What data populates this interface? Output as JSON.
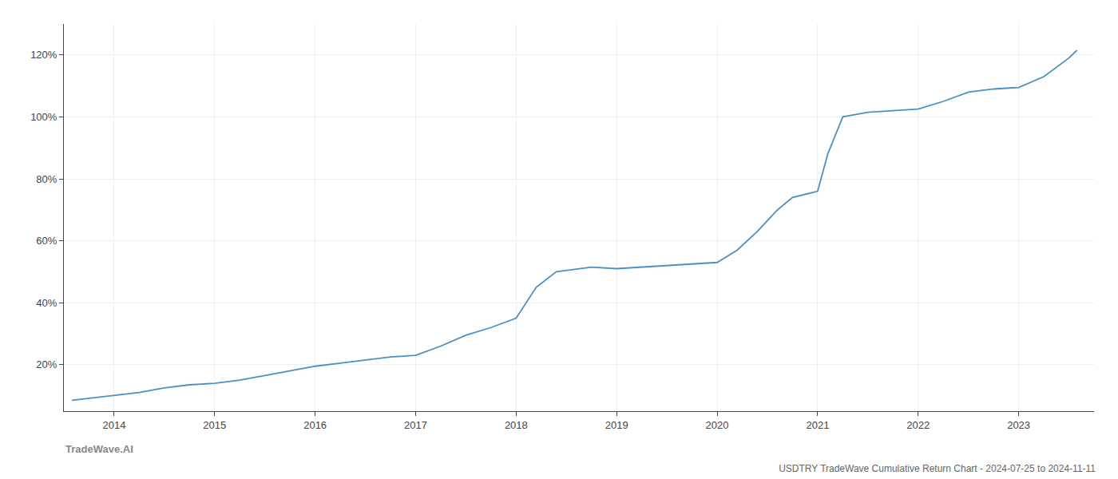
{
  "chart_data": {
    "type": "line",
    "title": "USDTRY TradeWave Cumulative Return Chart - 2024-07-25 to 2024-11-11",
    "annotations": [
      "TradeWave.AI"
    ],
    "color": "#4a90c4",
    "x": [
      2013.58,
      2014.0,
      2014.25,
      2014.5,
      2014.75,
      2015.0,
      2015.25,
      2015.5,
      2015.75,
      2016.0,
      2016.25,
      2016.5,
      2016.75,
      2017.0,
      2017.25,
      2017.5,
      2017.75,
      2018.0,
      2018.1,
      2018.2,
      2018.4,
      2018.75,
      2019.0,
      2019.25,
      2019.5,
      2019.75,
      2020.0,
      2020.2,
      2020.4,
      2020.6,
      2020.75,
      2021.0,
      2021.1,
      2021.25,
      2021.5,
      2021.75,
      2022.0,
      2022.25,
      2022.5,
      2022.75,
      2023.0,
      2023.25,
      2023.5,
      2023.58
    ],
    "values": [
      8.5,
      10.0,
      11.0,
      12.5,
      13.5,
      14.0,
      15.0,
      16.5,
      18.0,
      19.5,
      20.5,
      21.5,
      22.5,
      23.0,
      26.0,
      29.5,
      32.0,
      35.0,
      40.0,
      45.0,
      50.0,
      51.5,
      51.0,
      51.5,
      52.0,
      52.5,
      53.0,
      57.0,
      63.0,
      70.0,
      74.0,
      76.0,
      88.0,
      100.0,
      101.5,
      102.0,
      102.5,
      105.0,
      108.0,
      109.0,
      109.5,
      113.0,
      119.0,
      121.5
    ],
    "xlim": [
      2013.5,
      2023.75
    ],
    "xticks": [
      2014,
      2015,
      2016,
      2017,
      2018,
      2019,
      2020,
      2021,
      2022,
      2023
    ],
    "ylim": [
      5,
      130
    ],
    "yticks": [
      {
        "value": 20,
        "label": "20%"
      },
      {
        "value": 40,
        "label": "40%"
      },
      {
        "value": 60,
        "label": "60%"
      },
      {
        "value": 80,
        "label": "80%"
      },
      {
        "value": 100,
        "label": "100%"
      },
      {
        "value": 120,
        "label": "120%"
      }
    ],
    "grid": true
  }
}
